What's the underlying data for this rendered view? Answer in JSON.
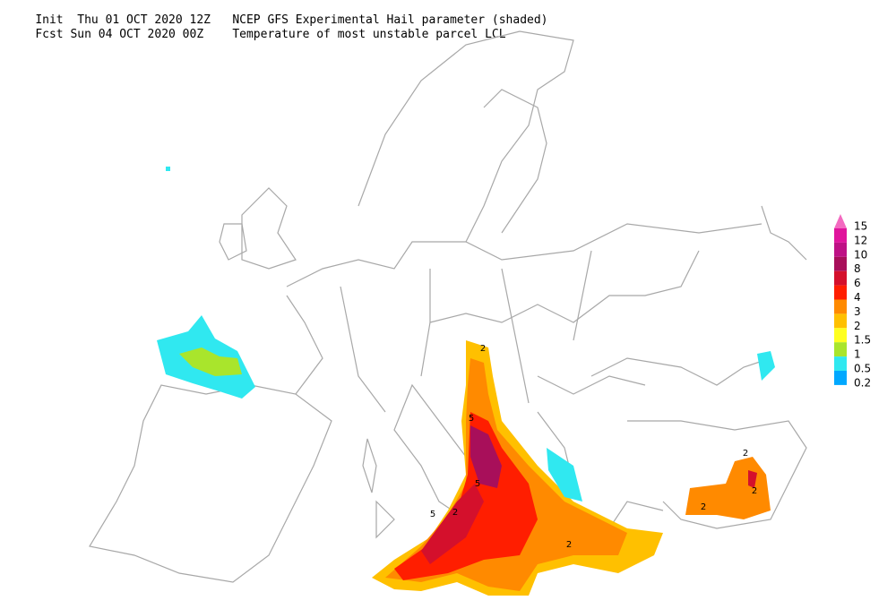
{
  "header": {
    "line1": {
      "left": "Init  Thu 01 OCT 2020 12Z",
      "right": "NCEP GFS Experimental Hail parameter (shaded)"
    },
    "line2": {
      "left": "Fcst Sun 04 OCT 2020 00Z",
      "right": "Temperature of most unstable parcel LCL"
    }
  },
  "legend": {
    "levels": [
      {
        "value": 15,
        "color": "#f36ac0"
      },
      {
        "value": 12,
        "color": "#e0149c"
      },
      {
        "value": 10,
        "color": "#be1185"
      },
      {
        "value": 8,
        "color": "#a80f5a"
      },
      {
        "value": 6,
        "color": "#d4102c"
      },
      {
        "value": 4,
        "color": "#ff1e00"
      },
      {
        "value": 3,
        "color": "#ff8a00"
      },
      {
        "value": 2,
        "color": "#ffc000"
      },
      {
        "value": 1.5,
        "color": "#ffff20"
      },
      {
        "value": 1,
        "color": "#a9e52c"
      },
      {
        "value": 0.5,
        "color": "#30e8f0"
      },
      {
        "value": 0.2,
        "color": "#00a8ff"
      }
    ]
  },
  "map": {
    "contour_labels": [
      "2",
      "5",
      "5",
      "2",
      "5",
      "2",
      "2",
      "2",
      "2"
    ]
  }
}
